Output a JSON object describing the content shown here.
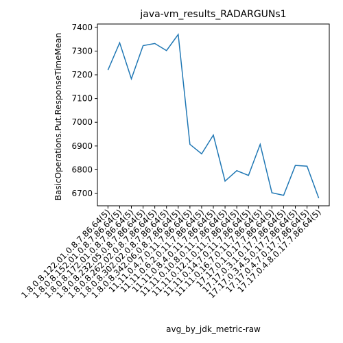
{
  "chart_data": {
    "type": "line",
    "title": "java-vm_results_RADARGUNs1",
    "x_label": "avg_by_jdk_metric-raw",
    "y_label": "BasicOperations.Put.ResponseTimeMean",
    "categories": [
      "1.8.0.8.122.01.0.8.7.86.64(5)",
      "1.8.0.8.152.01.0.8.7.86.64(5)",
      "1.8.0.8.172.01.0.8.7.86.64(5)",
      "1.8.0.8.232.05.0.8.7.86.64(5)",
      "1.8.0.8.262.02.0.8.7.86.64(5)",
      "1.8.0.8.302.02.0.8.7.86.64(5)",
      "1.8.0.8.342.06.0.8.7.86.64(5)",
      "11.11.0.4.7.0.11.7.86.64(5)",
      "11.11.0.6.2.0.11.7.86.64(5)",
      "11.11.0.8.4.0.11.7.86.64(5)",
      "11.11.0.10.8.0.11.7.86.64(5)",
      "11.11.0.12.1.0.11.7.86.64(5)",
      "11.11.0.14.7.0.11.7.86.64(5)",
      "11.11.0.16.7.0.11.7.86.64(5)",
      "17.17.0.1.0.17.7.86.64(5)",
      "17.17.0.3.1.0.17.7.86.64(5)",
      "17.17.0.3.4.5.0.17.7.86.64(5)",
      "17.17.0.4.7.0.17.7.86.64(5)",
      "17.17.0.4.8.0.17.7.86.64(5)"
    ],
    "series": [
      {
        "name": "BasicOperations.Put.ResponseTimeMean",
        "color": "#1f77b4",
        "values": [
          7220,
          7335,
          7183,
          7323,
          7332,
          7302,
          7370,
          6907,
          6867,
          6946,
          6752,
          6796,
          6776,
          6907,
          6703,
          6692,
          6818,
          6815,
          6680
        ]
      }
    ],
    "ylim": [
      6648,
      7414
    ],
    "yticks": [
      6700,
      6800,
      6900,
      7000,
      7100,
      7200,
      7300,
      7400
    ]
  }
}
